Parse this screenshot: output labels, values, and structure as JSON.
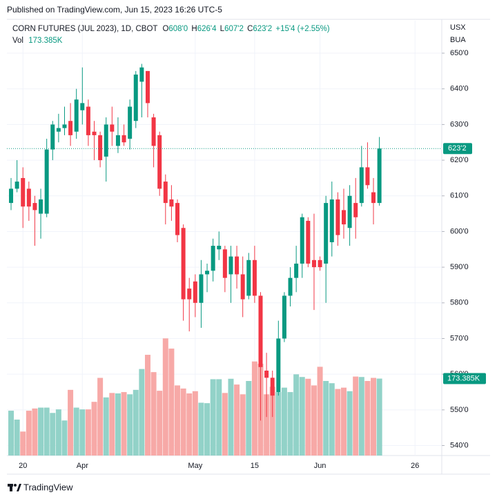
{
  "chart_data": {
    "type": "candlestick",
    "published": "Published on TradingView.com, Jun 15, 2023 16:26 UTC-5",
    "title": "CORN FUTURES (JUL 2023), 1D, CBOT",
    "ohlc": [
      {
        "label": "O",
        "value": "608'0"
      },
      {
        "label": "H",
        "value": "626'4"
      },
      {
        "label": "L",
        "value": "607'2"
      },
      {
        "label": "C",
        "value": "623'2"
      }
    ],
    "change": "+15'4 (+2.55%)",
    "volume_label": "Vol",
    "volume_value": "173.385K",
    "currency": "USX",
    "unit": "BUA",
    "brand": "TradingView",
    "up_color": "#089981",
    "down_color": "#f23645",
    "volume_up_color": "#92d2c8",
    "volume_down_color": "#f7a9a7",
    "open": [
      608,
      612,
      615,
      612,
      608,
      605,
      605,
      623,
      628,
      629,
      631,
      628,
      634,
      635,
      628,
      627,
      621,
      630,
      624,
      627,
      626,
      631,
      642,
      645,
      632,
      627,
      614,
      609,
      608,
      601,
      584,
      586,
      580,
      588,
      589,
      595,
      595,
      588,
      593,
      588,
      582,
      592,
      582,
      561,
      559,
      555,
      570,
      582,
      587,
      591,
      603,
      592,
      592,
      591,
      597,
      609,
      606,
      601,
      608,
      608,
      618,
      611,
      608
    ],
    "high": [
      615,
      620,
      618,
      614,
      610,
      612,
      626,
      631,
      633,
      635,
      636,
      640,
      646,
      637,
      631,
      628,
      632,
      635,
      632,
      630,
      637,
      645,
      647,
      645,
      633,
      628,
      616,
      613,
      609,
      602,
      587,
      588,
      592,
      591,
      598,
      600,
      596,
      596,
      596,
      593,
      594,
      596,
      583,
      566,
      561,
      575,
      583,
      590,
      596,
      605,
      604,
      605,
      593,
      610,
      614,
      611,
      612,
      613,
      615,
      624,
      625,
      615,
      626.5
    ],
    "low": [
      606,
      611,
      601,
      603,
      596,
      598,
      604,
      620,
      625,
      627,
      624,
      626,
      630,
      624,
      620,
      618,
      614,
      624,
      622,
      624,
      623,
      629,
      632,
      632,
      618,
      610,
      602,
      603,
      597,
      575,
      572,
      576,
      573,
      583,
      586,
      592,
      583,
      580,
      584,
      576,
      581,
      580,
      547,
      548,
      548,
      554,
      569,
      579,
      583,
      587,
      590,
      578,
      589,
      580,
      593,
      596,
      598,
      596,
      598,
      607,
      612,
      602,
      607.25
    ],
    "close": [
      612,
      614,
      607,
      607,
      606,
      609,
      623,
      630,
      629,
      630,
      627,
      637,
      636,
      627,
      627,
      620,
      630,
      628,
      627,
      625,
      635,
      644,
      646,
      636,
      624,
      612,
      608,
      607,
      599,
      581,
      581,
      580,
      588,
      589,
      596,
      596,
      587,
      593,
      588,
      581,
      592,
      582,
      562,
      559,
      554,
      570,
      582,
      587,
      591,
      604,
      591,
      590,
      590,
      608,
      609,
      599,
      602,
      610,
      604,
      618,
      613,
      608,
      623.25
    ],
    "volume": [
      101000,
      81000,
      54000,
      101000,
      106000,
      108000,
      108000,
      96000,
      104000,
      79000,
      148000,
      108000,
      104000,
      104000,
      121000,
      175000,
      131000,
      141000,
      140000,
      143000,
      138000,
      148000,
      195000,
      227000,
      188000,
      146000,
      264000,
      241000,
      158000,
      151000,
      140000,
      145000,
      119000,
      118000,
      172000,
      172000,
      141000,
      173000,
      160000,
      138000,
      168000,
      212000,
      207000,
      138000,
      155000,
      143000,
      153000,
      143000,
      183000,
      177000,
      173000,
      158000,
      200000,
      168000,
      163000,
      150000,
      153000,
      145000,
      178000,
      177000,
      168000,
      175000,
      173385
    ],
    "vol_ylim": [
      0,
      980000
    ],
    "xlim": [
      -0.7,
      72.5
    ],
    "xticks": [
      {
        "value": 2,
        "label": "20"
      },
      {
        "value": 12,
        "label": "Apr"
      },
      {
        "value": 31,
        "label": "May"
      },
      {
        "value": 41,
        "label": "15"
      },
      {
        "value": 52,
        "label": "Jun"
      },
      {
        "value": 68,
        "label": "26"
      }
    ],
    "ylim": [
      537.2,
      659.1
    ],
    "yticks": [
      {
        "value": 540,
        "label": "540'0"
      },
      {
        "value": 550,
        "label": "550'0"
      },
      {
        "value": 560,
        "label": "560'0"
      },
      {
        "value": 570,
        "label": "570'0"
      },
      {
        "value": 580,
        "label": "580'0"
      },
      {
        "value": 590,
        "label": "590'0"
      },
      {
        "value": 600,
        "label": "600'0"
      },
      {
        "value": 610,
        "label": "610'0"
      },
      {
        "value": 620,
        "label": "620'0"
      },
      {
        "value": 630,
        "label": "630'0"
      },
      {
        "value": 640,
        "label": "640'0"
      },
      {
        "value": 650,
        "label": "650'0"
      }
    ]
  }
}
